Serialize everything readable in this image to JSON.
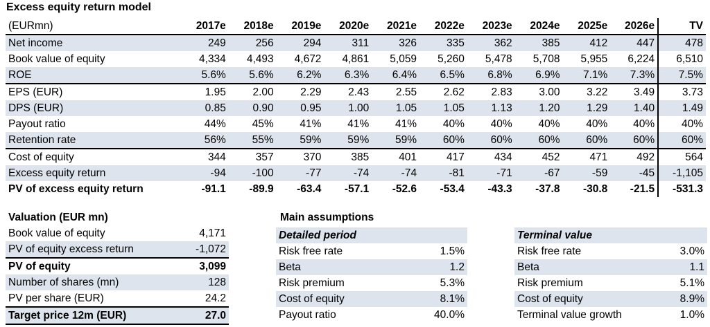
{
  "title": "Excess equity return model",
  "main_table": {
    "unit_label": "(EURmn)",
    "columns": [
      "2017e",
      "2018e",
      "2019e",
      "2020e",
      "2021e",
      "2022e",
      "2023e",
      "2024e",
      "2025e",
      "2026e",
      "TV"
    ],
    "rows": [
      {
        "label": "Net income",
        "values": [
          "249",
          "256",
          "294",
          "311",
          "326",
          "335",
          "362",
          "385",
          "412",
          "447",
          "478"
        ]
      },
      {
        "label": "Book value of equity",
        "values": [
          "4,334",
          "4,493",
          "4,672",
          "4,861",
          "5,059",
          "5,260",
          "5,478",
          "5,708",
          "5,955",
          "6,224",
          "6,510"
        ]
      },
      {
        "label": "ROE",
        "values": [
          "5.6%",
          "5.6%",
          "6.2%",
          "6.3%",
          "6.4%",
          "6.5%",
          "6.8%",
          "6.9%",
          "7.1%",
          "7.3%",
          "7.5%"
        ]
      },
      {
        "label": "EPS (EUR)",
        "values": [
          "1.95",
          "2.00",
          "2.29",
          "2.43",
          "2.55",
          "2.62",
          "2.83",
          "3.00",
          "3.22",
          "3.49",
          "3.73"
        ]
      },
      {
        "label": "DPS (EUR)",
        "values": [
          "0.85",
          "0.90",
          "0.95",
          "1.00",
          "1.05",
          "1.05",
          "1.13",
          "1.20",
          "1.29",
          "1.40",
          "1.49"
        ]
      },
      {
        "label": "Payout ratio",
        "values": [
          "44%",
          "45%",
          "41%",
          "41%",
          "41%",
          "40%",
          "40%",
          "40%",
          "40%",
          "40%",
          "40%"
        ]
      },
      {
        "label": "Retention rate",
        "values": [
          "56%",
          "55%",
          "59%",
          "59%",
          "59%",
          "60%",
          "60%",
          "60%",
          "60%",
          "60%",
          "60%"
        ]
      },
      {
        "label": "Cost of equity",
        "values": [
          "344",
          "357",
          "370",
          "385",
          "401",
          "417",
          "434",
          "452",
          "471",
          "492",
          "564"
        ]
      },
      {
        "label": "Excess equity return",
        "values": [
          "-94",
          "-100",
          "-77",
          "-74",
          "-74",
          "-81",
          "-71",
          "-67",
          "-59",
          "-45",
          "-1,105"
        ]
      },
      {
        "label": "PV of excess equity return",
        "values": [
          "-91.1",
          "-89.9",
          "-63.4",
          "-57.1",
          "-52.6",
          "-53.4",
          "-43.3",
          "-37.8",
          "-30.8",
          "-21.5",
          "-531.3"
        ]
      }
    ]
  },
  "valuation": {
    "title": "Valuation (EUR mn)",
    "rows": [
      {
        "label": "Book value of equity",
        "value": "4,171"
      },
      {
        "label": "PV of equity excess return",
        "value": "-1,072"
      },
      {
        "label": "PV of equity",
        "value": "3,099"
      },
      {
        "label": "Number of shares (mn)",
        "value": "128"
      },
      {
        "label": "PV per share (EUR)",
        "value": "24.2"
      },
      {
        "label": "Target price 12m (EUR)",
        "value": "27.0"
      }
    ]
  },
  "assumptions": {
    "title": "Main assumptions",
    "detailed": {
      "heading": "Detailed period",
      "rows": [
        {
          "label": "Risk free rate",
          "value": "1.5%"
        },
        {
          "label": "Beta",
          "value": "1.2"
        },
        {
          "label": "Risk premium",
          "value": "5.3%"
        },
        {
          "label": "Cost of equity",
          "value": "8.1%"
        },
        {
          "label": "Payout ratio",
          "value": "40.0%"
        }
      ]
    },
    "terminal": {
      "heading": "Terminal value",
      "rows": [
        {
          "label": "Risk free rate",
          "value": "3.0%"
        },
        {
          "label": "Beta",
          "value": "1.1"
        },
        {
          "label": "Risk premium",
          "value": "5.1%"
        },
        {
          "label": "Cost of equity",
          "value": "8.9%"
        },
        {
          "label": "Terminal value growth",
          "value": "1.0%"
        }
      ]
    }
  },
  "colors": {
    "shade": "#dde4ee"
  }
}
